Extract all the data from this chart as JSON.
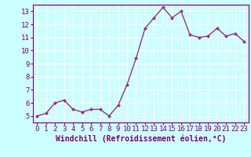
{
  "x": [
    0,
    1,
    2,
    3,
    4,
    5,
    6,
    7,
    8,
    9,
    10,
    11,
    12,
    13,
    14,
    15,
    16,
    17,
    18,
    19,
    20,
    21,
    22,
    23
  ],
  "y": [
    5.0,
    5.2,
    6.0,
    6.2,
    5.5,
    5.3,
    5.5,
    5.5,
    5.0,
    5.8,
    7.4,
    9.4,
    11.7,
    12.5,
    13.3,
    12.5,
    13.0,
    11.2,
    11.0,
    11.1,
    11.7,
    11.1,
    11.3,
    10.7
  ],
  "line_color": "#993399",
  "marker": "D",
  "marker_size": 2.0,
  "background_color": "#ccffff",
  "grid_color": "#ffffff",
  "xlabel": "Windchill (Refroidissement éolien,°C)",
  "xlabel_fontsize": 7,
  "ylabel": "",
  "ylim": [
    4.5,
    13.5
  ],
  "xlim": [
    -0.5,
    23.5
  ],
  "yticks": [
    5,
    6,
    7,
    8,
    9,
    10,
    11,
    12,
    13
  ],
  "xticks": [
    0,
    1,
    2,
    3,
    4,
    5,
    6,
    7,
    8,
    9,
    10,
    11,
    12,
    13,
    14,
    15,
    16,
    17,
    18,
    19,
    20,
    21,
    22,
    23
  ],
  "tick_fontsize": 6.5,
  "tick_color": "#800080",
  "spine_color": "#800080",
  "label_color": "#800080",
  "line_width": 1.0
}
